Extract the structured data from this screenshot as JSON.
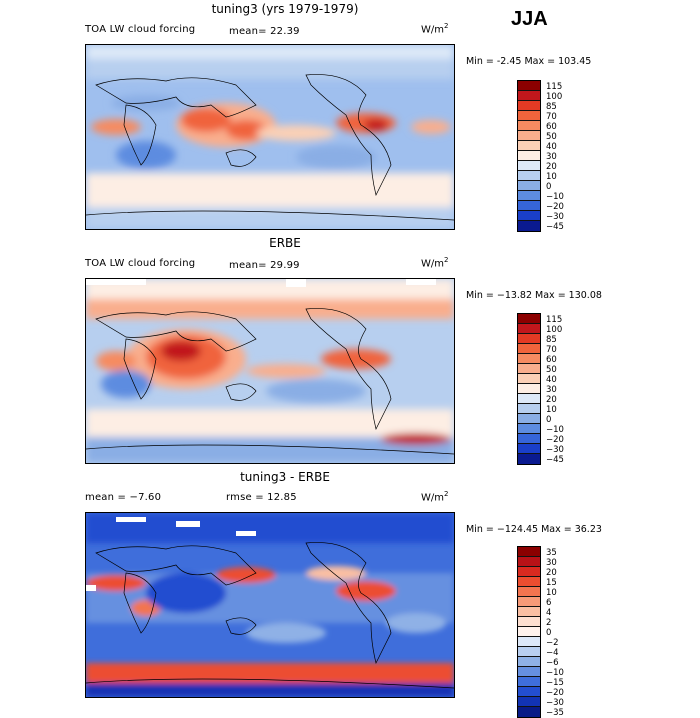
{
  "season": "JJA",
  "panels": [
    {
      "title": "tuning3 (yrs 1979-1979)",
      "left_text": "TOA LW cloud forcing",
      "mid_text": "mean=  22.39",
      "units": "W/m",
      "units_exp": "2",
      "minmax": "Min =  -2.45  Max =  103.45",
      "levels": [
        "115",
        "100",
        "85",
        "70",
        "60",
        "50",
        "40",
        "30",
        "20",
        "10",
        "0",
        "−10",
        "−20",
        "−30",
        "−45"
      ],
      "colors": [
        "#8b0000",
        "#c1171c",
        "#e33a24",
        "#f0643c",
        "#f68b61",
        "#f9ae8d",
        "#fbd0b6",
        "#fdeee4",
        "#dde9f8",
        "#b7cfef",
        "#8aaee5",
        "#5d8ce0",
        "#3665d9",
        "#1a3fc9",
        "#0a1a90"
      ]
    },
    {
      "title": "ERBE",
      "left_text": "TOA LW cloud forcing",
      "mid_text": "mean=  29.99",
      "units": "W/m",
      "units_exp": "2",
      "minmax": "Min = −13.82  Max =  130.08",
      "levels": [
        "115",
        "100",
        "85",
        "70",
        "60",
        "50",
        "40",
        "30",
        "20",
        "10",
        "0",
        "−10",
        "−20",
        "−30",
        "−45"
      ],
      "colors": [
        "#8b0000",
        "#c1171c",
        "#e33a24",
        "#f0643c",
        "#f68b61",
        "#f9ae8d",
        "#fbd0b6",
        "#fdeee4",
        "#dde9f8",
        "#b7cfef",
        "#8aaee5",
        "#5d8ce0",
        "#3665d9",
        "#1a3fc9",
        "#0a1a90"
      ]
    },
    {
      "title": "tuning3 - ERBE",
      "left_text": "mean =   −7.60",
      "mid_text": "rmse =   12.85",
      "units": "W/m",
      "units_exp": "2",
      "minmax": "Min = −124.45  Max =  36.23",
      "levels": [
        "35",
        "30",
        "20",
        "15",
        "10",
        "6",
        "4",
        "2",
        "0",
        "−2",
        "−4",
        "−6",
        "−10",
        "−15",
        "−20",
        "−30",
        "−35"
      ],
      "colors": [
        "#8b0000",
        "#b81217",
        "#d92a20",
        "#ec4d30",
        "#f37450",
        "#f79a78",
        "#fabfa3",
        "#fddfd0",
        "#fff2ec",
        "#dde8f8",
        "#b9cff0",
        "#8fb1e6",
        "#6690e0",
        "#3f6edb",
        "#234ed0",
        "#1233b4",
        "#081a86"
      ]
    }
  ]
}
